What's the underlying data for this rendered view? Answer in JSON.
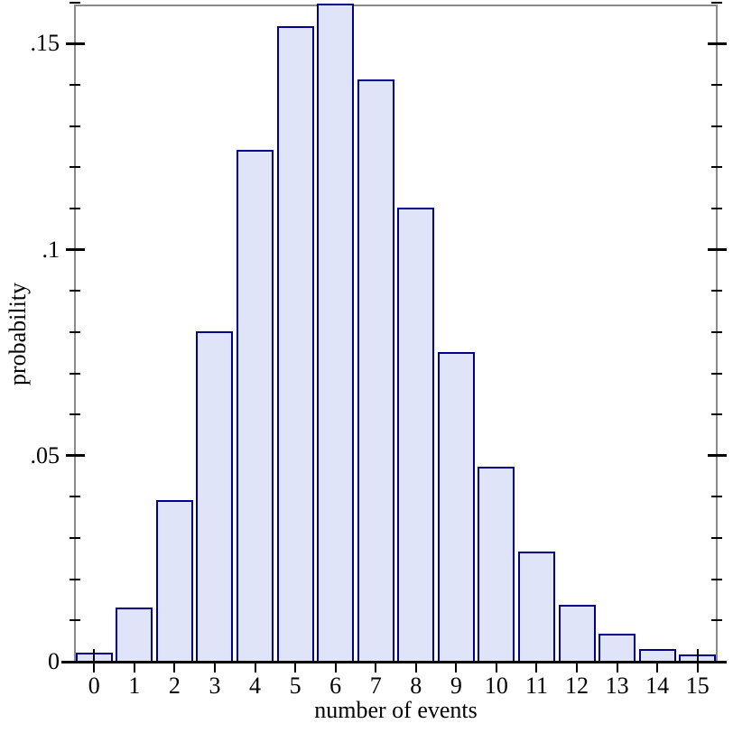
{
  "chart_data": {
    "type": "bar",
    "title": "",
    "xlabel": "number of events",
    "ylabel": "probability",
    "categories": [
      "0",
      "1",
      "2",
      "3",
      "4",
      "5",
      "6",
      "7",
      "8",
      "9",
      "10",
      "11",
      "12",
      "13",
      "14",
      "15"
    ],
    "values": [
      0.002,
      0.013,
      0.039,
      0.08,
      0.124,
      0.154,
      0.1595,
      0.141,
      0.11,
      0.075,
      0.047,
      0.0265,
      0.0135,
      0.0065,
      0.0028,
      0.0016
    ],
    "y_axis": {
      "major_ticks": [
        0,
        0.05,
        0.1,
        0.15
      ],
      "major_tick_labels": [
        "0",
        ".05",
        ".1",
        ".15"
      ],
      "minor_tick_step": 0.01,
      "min": 0,
      "max": 0.1595
    },
    "x_axis": {
      "tick_positions": [
        0,
        1,
        2,
        3,
        4,
        5,
        6,
        7,
        8,
        9,
        10,
        11,
        12,
        13,
        14,
        15
      ],
      "ticks_cross_axis_at": [
        "0",
        "15"
      ]
    },
    "grid": false,
    "legend": "none",
    "colors": {
      "bar_fill": "#dfe4f8",
      "bar_border": "#00008b",
      "frame": "#8a8a8a",
      "baseline": "#000000",
      "tick": "#000000",
      "text": "#000000",
      "background": "#ffffff"
    }
  }
}
